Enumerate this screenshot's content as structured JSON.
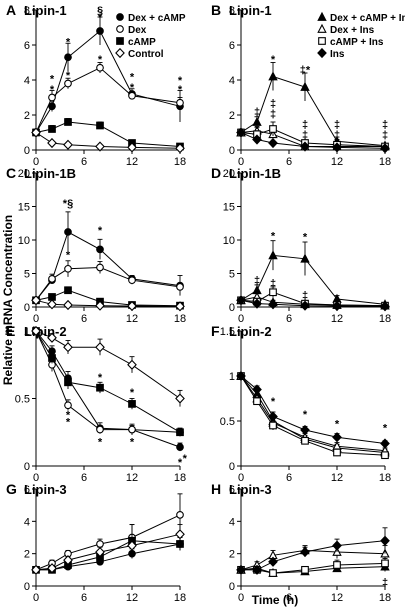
{
  "figure": {
    "ylabel": "Relative mRNA Concentration",
    "xlabel": "Time (h)"
  },
  "chart_data": [
    {
      "panel": "A",
      "title": "Lipin-1",
      "type": "line",
      "x": [
        0,
        2,
        4,
        8,
        12,
        18
      ],
      "ylim": [
        0,
        8
      ],
      "yticks": [
        0,
        2,
        4,
        6,
        8
      ],
      "legend": "top-right",
      "series": [
        {
          "name": "Dex + cAMP",
          "marker": "filled-circle",
          "values": [
            1.0,
            2.5,
            5.3,
            6.8,
            3.2,
            2.5
          ],
          "errors": [
            0.2,
            0.3,
            0.8,
            0.8,
            0.3,
            0.9
          ]
        },
        {
          "name": "Dex",
          "marker": "open-circle",
          "values": [
            1.0,
            3.0,
            3.8,
            4.7,
            3.1,
            2.7
          ],
          "errors": [
            0.2,
            0.4,
            0.3,
            0.3,
            0.2,
            0.3
          ]
        },
        {
          "name": "cAMP",
          "marker": "filled-square",
          "values": [
            1.0,
            1.2,
            1.6,
            1.4,
            0.4,
            0.2
          ],
          "errors": [
            0.1,
            0.2,
            0.2,
            0.2,
            0.1,
            0.1
          ]
        },
        {
          "name": "Control",
          "marker": "open-diamond",
          "values": [
            1.0,
            0.4,
            0.3,
            0.2,
            0.15,
            0.1
          ],
          "errors": [
            0.1,
            0.1,
            0.1,
            0.05,
            0.05,
            0.05
          ]
        }
      ],
      "annotations": [
        {
          "x": 2,
          "y": 3.5,
          "text": "*"
        },
        {
          "x": 2,
          "y": 4.1,
          "text": "*"
        },
        {
          "x": 4,
          "y": 6.2,
          "text": "*"
        },
        {
          "x": 4,
          "y": 4.3,
          "text": "*"
        },
        {
          "x": 8,
          "y": 8.0,
          "text": "§"
        },
        {
          "x": 8,
          "y": 7.6,
          "text": "*"
        },
        {
          "x": 8,
          "y": 5.2,
          "text": "*"
        },
        {
          "x": 12,
          "y": 4.2,
          "text": "*"
        },
        {
          "x": 12,
          "y": 3.6,
          "text": "*"
        },
        {
          "x": 18,
          "y": 4.0,
          "text": "*"
        },
        {
          "x": 18,
          "y": 3.5,
          "text": "*"
        }
      ]
    },
    {
      "panel": "B",
      "title": "Lipin-1",
      "type": "line",
      "x": [
        0,
        2,
        4,
        8,
        12,
        18
      ],
      "ylim": [
        0,
        8
      ],
      "yticks": [
        0,
        2,
        4,
        6,
        8
      ],
      "legend": "top-right",
      "series": [
        {
          "name": "Dex + cAMP + Ins",
          "marker": "filled-triangle",
          "values": [
            1.0,
            1.6,
            4.2,
            3.6,
            0.5,
            0.25
          ],
          "errors": [
            0.2,
            0.3,
            0.8,
            0.8,
            0.1,
            0.1
          ]
        },
        {
          "name": "Dex + Ins",
          "marker": "open-triangle",
          "values": [
            1.0,
            1.1,
            0.9,
            0.2,
            0.2,
            0.2
          ],
          "errors": [
            0.1,
            0.2,
            0.2,
            0.05,
            0.05,
            0.05
          ]
        },
        {
          "name": "cAMP + Ins",
          "marker": "open-square",
          "values": [
            1.0,
            0.9,
            1.2,
            0.4,
            0.3,
            0.2
          ],
          "errors": [
            0.1,
            0.2,
            0.4,
            0.1,
            0.05,
            0.05
          ]
        },
        {
          "name": "Ins",
          "marker": "filled-diamond",
          "values": [
            1.0,
            0.6,
            0.4,
            0.2,
            0.15,
            0.1
          ],
          "errors": [
            0.1,
            0.1,
            0.1,
            0.05,
            0.05,
            0.05
          ]
        }
      ],
      "annotations": [
        {
          "x": 2,
          "y": 2.2,
          "text": "‡"
        },
        {
          "x": 2,
          "y": 1.5,
          "text": "‡"
        },
        {
          "x": 4,
          "y": 5.2,
          "text": "*"
        },
        {
          "x": 4,
          "y": 2.7,
          "text": "‡"
        },
        {
          "x": 4,
          "y": 2.1,
          "text": "‡"
        },
        {
          "x": 8,
          "y": 4.6,
          "text": "‡*"
        },
        {
          "x": 8,
          "y": 1.5,
          "text": "‡"
        },
        {
          "x": 8,
          "y": 0.9,
          "text": "‡"
        },
        {
          "x": 12,
          "y": 1.5,
          "text": "‡"
        },
        {
          "x": 12,
          "y": 0.9,
          "text": "‡"
        },
        {
          "x": 18,
          "y": 1.5,
          "text": "‡"
        },
        {
          "x": 18,
          "y": 0.9,
          "text": "‡"
        }
      ]
    },
    {
      "panel": "C",
      "title": "Lipin-1B",
      "type": "line",
      "x": [
        0,
        2,
        4,
        8,
        12,
        18
      ],
      "ylim": [
        0,
        20
      ],
      "yticks": [
        0,
        5,
        10,
        15,
        20
      ],
      "series": [
        {
          "name": "Dex + cAMP",
          "marker": "filled-circle",
          "values": [
            1.0,
            4.0,
            11.2,
            8.6,
            4.2,
            3.2
          ],
          "errors": [
            0.3,
            0.5,
            3.0,
            1.5,
            0.5,
            1.5
          ]
        },
        {
          "name": "Dex",
          "marker": "open-circle",
          "values": [
            1.0,
            4.2,
            5.7,
            5.9,
            4.0,
            3.0
          ],
          "errors": [
            0.3,
            0.7,
            1.2,
            0.9,
            0.6,
            0.5
          ]
        },
        {
          "name": "cAMP",
          "marker": "filled-square",
          "values": [
            1.0,
            1.5,
            2.5,
            0.8,
            0.3,
            0.2
          ],
          "errors": [
            0.1,
            0.3,
            0.5,
            0.2,
            0.1,
            0.05
          ]
        },
        {
          "name": "Control",
          "marker": "open-diamond",
          "values": [
            1.0,
            0.4,
            0.3,
            0.2,
            0.15,
            0.1
          ],
          "errors": [
            0.1,
            0.1,
            0.1,
            0.05,
            0.05,
            0.05
          ]
        }
      ],
      "annotations": [
        {
          "x": 4,
          "y": 15.5,
          "text": "*§"
        },
        {
          "x": 4,
          "y": 7.8,
          "text": "*"
        },
        {
          "x": 8,
          "y": 11.5,
          "text": "*"
        }
      ]
    },
    {
      "panel": "D",
      "title": "Lipin-1B",
      "type": "line",
      "x": [
        0,
        2,
        4,
        8,
        12,
        18
      ],
      "ylim": [
        0,
        20
      ],
      "yticks": [
        0,
        5,
        10,
        15,
        20
      ],
      "series": [
        {
          "name": "Dex + cAMP + Ins",
          "marker": "filled-triangle",
          "values": [
            1.0,
            2.5,
            7.7,
            7.2,
            1.2,
            0.4
          ],
          "errors": [
            0.3,
            0.8,
            2.2,
            2.5,
            0.5,
            0.1
          ]
        },
        {
          "name": "Dex + Ins",
          "marker": "open-triangle",
          "values": [
            1.0,
            1.5,
            0.7,
            0.4,
            0.3,
            0.2
          ],
          "errors": [
            0.1,
            0.5,
            0.3,
            0.1,
            0.1,
            0.05
          ]
        },
        {
          "name": "cAMP + Ins",
          "marker": "open-square",
          "values": [
            1.0,
            0.8,
            2.2,
            0.5,
            0.3,
            0.2
          ],
          "errors": [
            0.1,
            0.3,
            0.8,
            0.2,
            0.1,
            0.05
          ]
        },
        {
          "name": "Ins",
          "marker": "filled-diamond",
          "values": [
            1.0,
            0.5,
            0.4,
            0.2,
            0.15,
            0.1
          ],
          "errors": [
            0.1,
            0.1,
            0.1,
            0.05,
            0.05,
            0.05
          ]
        }
      ],
      "annotations": [
        {
          "x": 2,
          "y": 4.0,
          "text": "‡"
        },
        {
          "x": 4,
          "y": 10.7,
          "text": "*"
        },
        {
          "x": 4,
          "y": 3.6,
          "text": "‡"
        },
        {
          "x": 8,
          "y": 10.5,
          "text": "*"
        },
        {
          "x": 8,
          "y": 1.8,
          "text": "‡"
        }
      ]
    },
    {
      "panel": "E",
      "title": "Lipin-2",
      "type": "line",
      "x": [
        0,
        2,
        4,
        8,
        12,
        18
      ],
      "ylim": [
        0,
        1.0
      ],
      "yticks": [
        0,
        0.5,
        1.0
      ],
      "series": [
        {
          "name": "Dex + cAMP",
          "marker": "filled-circle",
          "values": [
            1.0,
            0.85,
            0.65,
            0.28,
            0.27,
            0.14
          ],
          "errors": [
            0.02,
            0.04,
            0.05,
            0.04,
            0.04,
            0.03
          ]
        },
        {
          "name": "Dex",
          "marker": "open-circle",
          "values": [
            1.0,
            0.75,
            0.45,
            0.27,
            0.27,
            0.25
          ],
          "errors": [
            0.02,
            0.05,
            0.04,
            0.03,
            0.03,
            0.03
          ]
        },
        {
          "name": "cAMP",
          "marker": "filled-square",
          "values": [
            1.0,
            0.8,
            0.62,
            0.58,
            0.46,
            0.25
          ],
          "errors": [
            0.02,
            0.04,
            0.05,
            0.04,
            0.04,
            0.03
          ]
        },
        {
          "name": "Control",
          "marker": "open-diamond",
          "values": [
            1.0,
            0.95,
            0.88,
            0.88,
            0.75,
            0.5
          ],
          "errors": [
            0.02,
            0.03,
            0.05,
            0.06,
            0.06,
            0.06
          ]
        }
      ],
      "annotations": [
        {
          "x": 4,
          "y": 0.38,
          "text": "*"
        },
        {
          "x": 4,
          "y": 0.33,
          "text": "*"
        },
        {
          "x": 8,
          "y": 0.66,
          "text": "*"
        },
        {
          "x": 8,
          "y": 0.18,
          "text": "*"
        },
        {
          "x": 12,
          "y": 0.55,
          "text": "*"
        },
        {
          "x": 12,
          "y": 0.18,
          "text": "*"
        },
        {
          "x": 18,
          "y": 0.03,
          "text": "*"
        },
        {
          "x": 18.6,
          "y": 0.06,
          "text": "*"
        }
      ]
    },
    {
      "panel": "F",
      "title": "Lipin-2",
      "type": "line",
      "x": [
        0,
        2,
        4,
        8,
        12,
        18
      ],
      "ylim": [
        0,
        1.5
      ],
      "yticks": [
        0,
        0.5,
        1.0,
        1.5
      ],
      "series": [
        {
          "name": "Dex + cAMP + Ins",
          "marker": "filled-triangle",
          "values": [
            1.0,
            0.8,
            0.5,
            0.3,
            0.2,
            0.15
          ],
          "errors": [
            0.02,
            0.04,
            0.05,
            0.04,
            0.04,
            0.03
          ]
        },
        {
          "name": "Dex + Ins",
          "marker": "open-triangle",
          "values": [
            1.0,
            0.75,
            0.48,
            0.32,
            0.22,
            0.17
          ],
          "errors": [
            0.02,
            0.04,
            0.05,
            0.04,
            0.04,
            0.03
          ]
        },
        {
          "name": "cAMP + Ins",
          "marker": "open-square",
          "values": [
            1.0,
            0.72,
            0.45,
            0.28,
            0.15,
            0.12
          ],
          "errors": [
            0.02,
            0.04,
            0.05,
            0.04,
            0.04,
            0.03
          ]
        },
        {
          "name": "Ins",
          "marker": "filled-diamond",
          "values": [
            1.0,
            0.85,
            0.55,
            0.4,
            0.32,
            0.25
          ],
          "errors": [
            0.02,
            0.04,
            0.05,
            0.04,
            0.04,
            0.03
          ]
        }
      ],
      "annotations": [
        {
          "x": 4,
          "y": 0.72,
          "text": "*"
        },
        {
          "x": 8,
          "y": 0.58,
          "text": "*"
        },
        {
          "x": 12,
          "y": 0.47,
          "text": "*"
        },
        {
          "x": 18,
          "y": 0.43,
          "text": "*"
        }
      ]
    },
    {
      "panel": "G",
      "title": "Lipin-3",
      "type": "line",
      "x": [
        0,
        2,
        4,
        8,
        12,
        18
      ],
      "ylim": [
        0,
        6
      ],
      "yticks": [
        0,
        2,
        4,
        6
      ],
      "series": [
        {
          "name": "Dex + cAMP",
          "marker": "filled-circle",
          "values": [
            1.0,
            1.0,
            1.2,
            1.5,
            2.0,
            2.6
          ],
          "errors": [
            0.1,
            0.1,
            0.1,
            0.2,
            0.3,
            0.4
          ]
        },
        {
          "name": "Dex",
          "marker": "open-circle",
          "values": [
            1.0,
            1.4,
            2.0,
            2.6,
            3.0,
            4.4
          ],
          "errors": [
            0.1,
            0.2,
            0.2,
            0.3,
            0.8,
            1.3
          ]
        },
        {
          "name": "cAMP",
          "marker": "filled-square",
          "values": [
            1.0,
            1.0,
            1.3,
            1.8,
            2.8,
            2.6
          ],
          "errors": [
            0.1,
            0.1,
            0.2,
            0.2,
            1.0,
            0.4
          ]
        },
        {
          "name": "Control",
          "marker": "open-diamond",
          "values": [
            1.0,
            1.1,
            1.6,
            2.1,
            2.5,
            3.2
          ],
          "errors": [
            0.1,
            0.1,
            0.2,
            0.3,
            0.4,
            0.6
          ]
        }
      ],
      "annotations": []
    },
    {
      "panel": "H",
      "title": "Lipin-3",
      "type": "line",
      "x": [
        0,
        2,
        4,
        8,
        12,
        18
      ],
      "ylim": [
        0,
        6
      ],
      "yticks": [
        0,
        2,
        4,
        6
      ],
      "series": [
        {
          "name": "Dex + cAMP + Ins",
          "marker": "filled-triangle",
          "values": [
            1.0,
            1.1,
            0.8,
            0.9,
            1.1,
            1.2
          ],
          "errors": [
            0.1,
            0.1,
            0.1,
            0.2,
            0.2,
            0.3
          ]
        },
        {
          "name": "Dex + Ins",
          "marker": "open-triangle",
          "values": [
            1.0,
            1.3,
            1.9,
            2.2,
            2.1,
            2.0
          ],
          "errors": [
            0.1,
            0.2,
            0.3,
            0.3,
            0.4,
            0.5
          ]
        },
        {
          "name": "cAMP + Ins",
          "marker": "open-square",
          "values": [
            1.0,
            1.0,
            0.8,
            1.0,
            1.3,
            1.4
          ],
          "errors": [
            0.1,
            0.1,
            0.1,
            0.2,
            0.3,
            0.3
          ]
        },
        {
          "name": "Ins",
          "marker": "filled-diamond",
          "values": [
            1.0,
            1.0,
            1.5,
            2.1,
            2.5,
            2.8
          ],
          "errors": [
            0.1,
            0.1,
            0.2,
            0.3,
            0.4,
            0.8
          ]
        }
      ],
      "annotations": [
        {
          "x": 18,
          "y": 0.25,
          "text": "‡"
        }
      ]
    }
  ]
}
